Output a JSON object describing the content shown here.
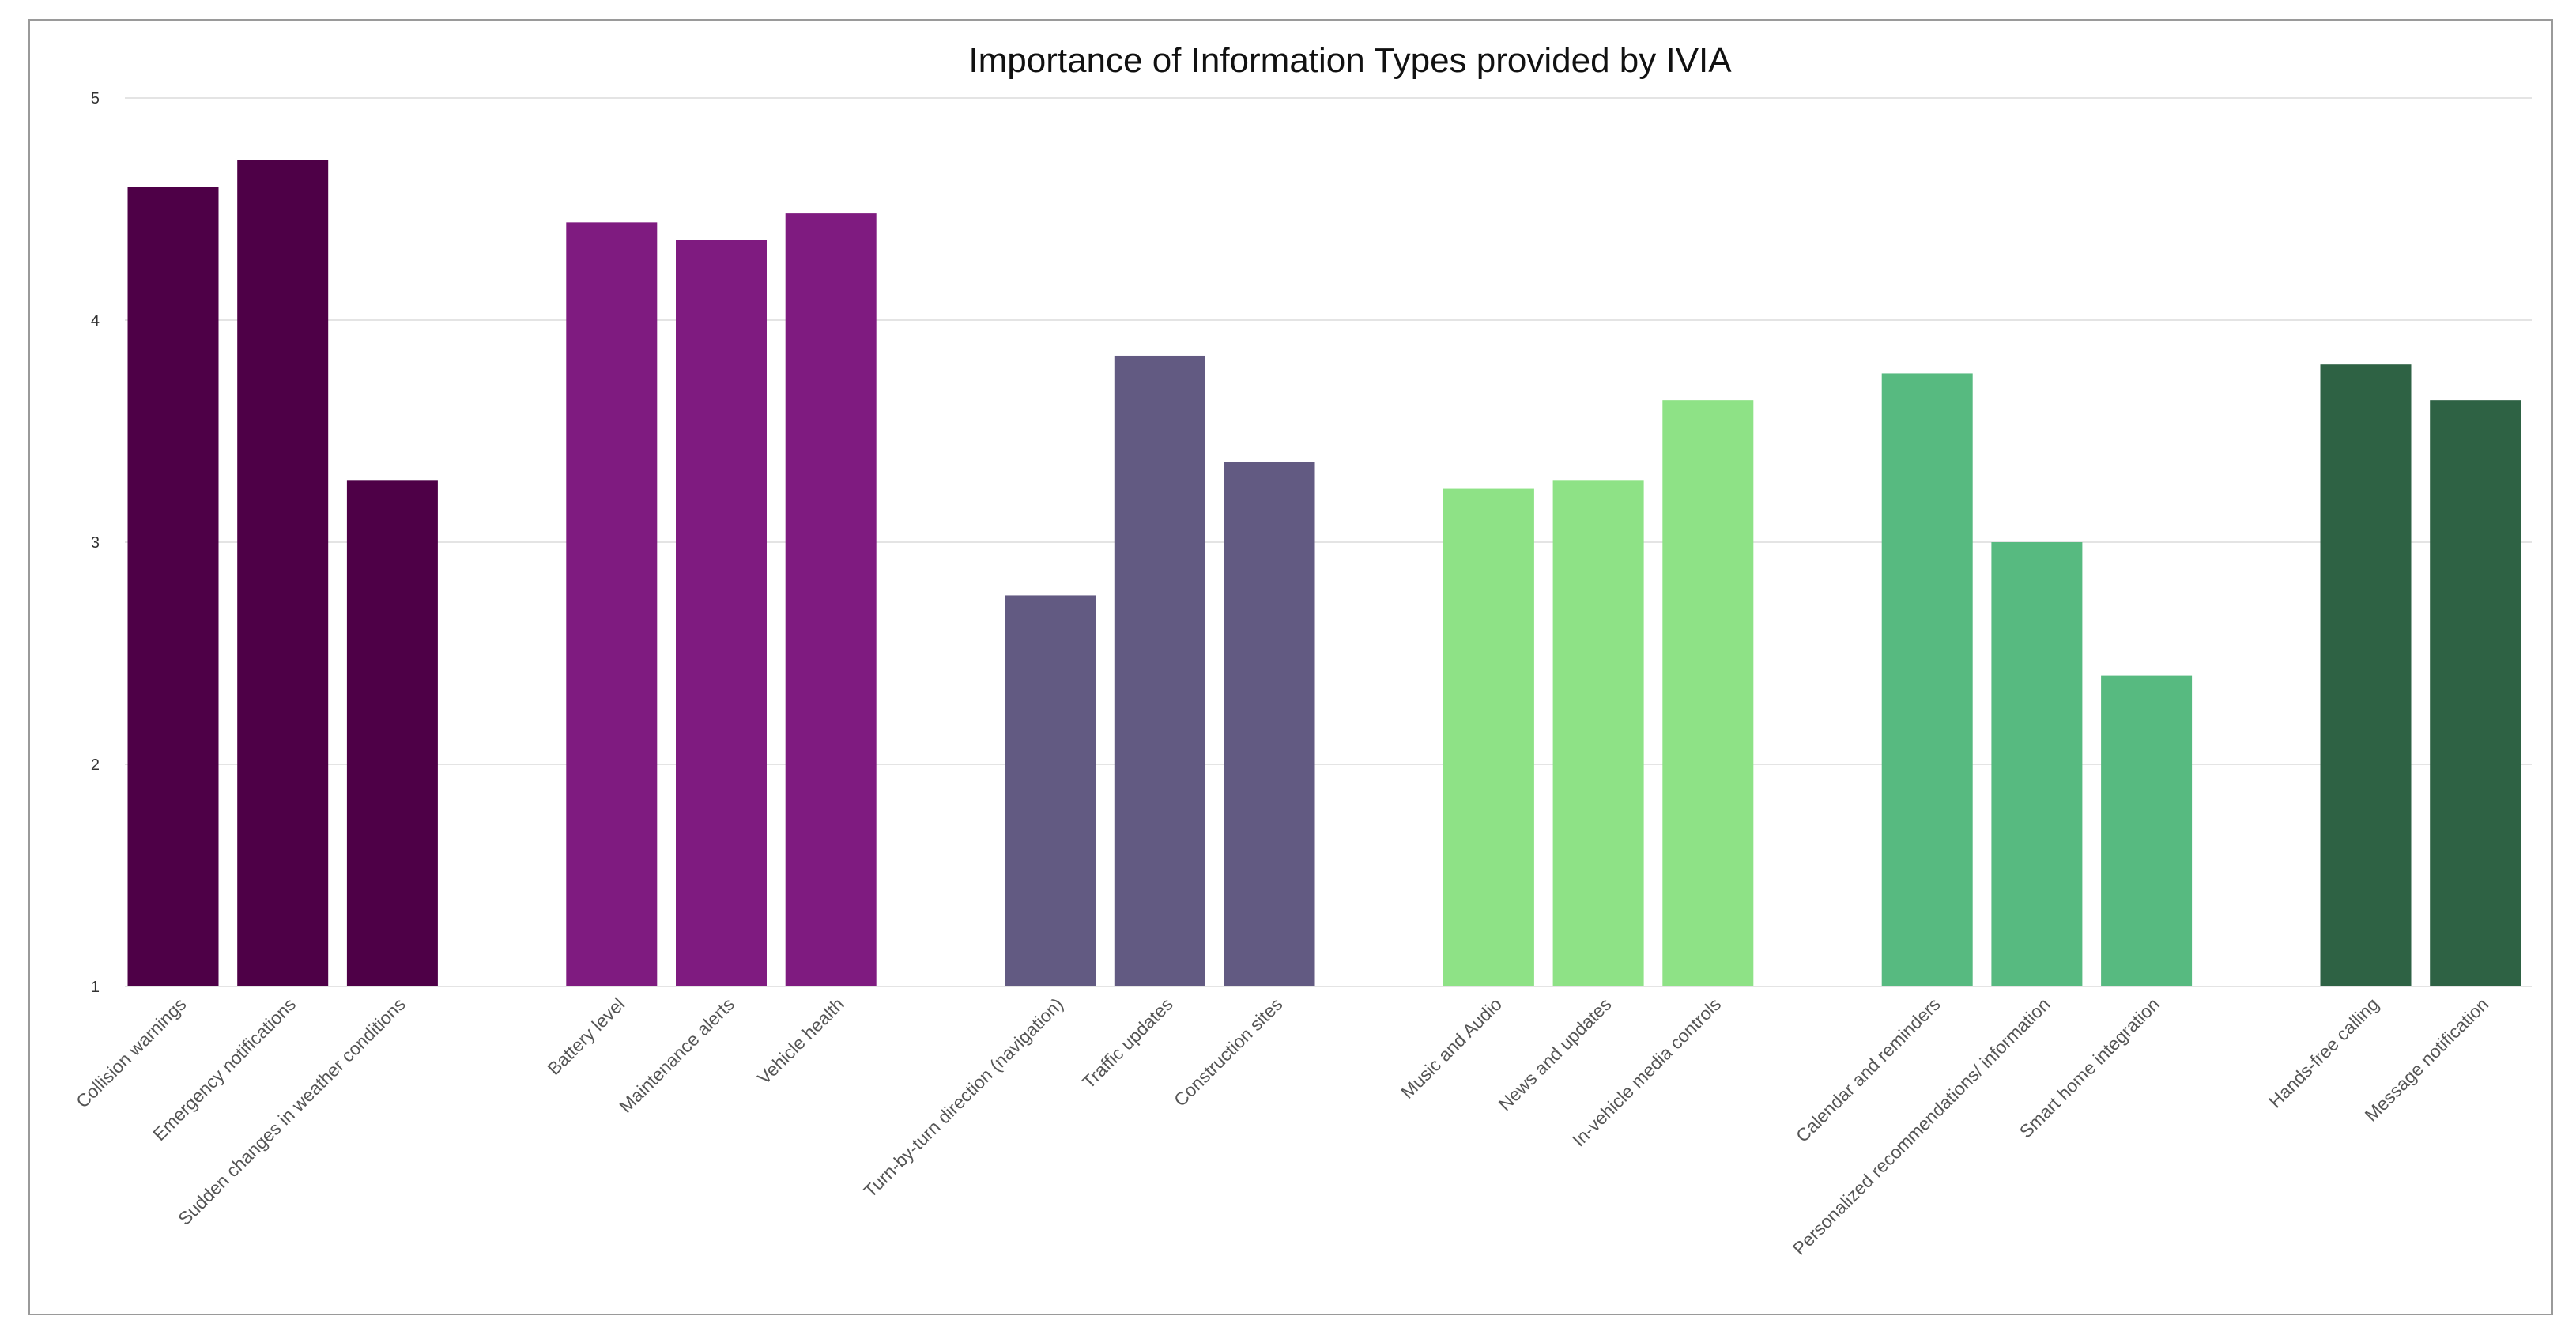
{
  "chart_data": {
    "type": "bar",
    "title": "Importance of Information Types provided by IVIA",
    "xlabel": "",
    "ylabel": "",
    "ylim": [
      1,
      5
    ],
    "yticks": [
      1,
      2,
      3,
      4,
      5
    ],
    "grid": true,
    "legend": "none",
    "groups": [
      {
        "color": "#4e0047",
        "items": [
          {
            "label": "Collision warnings",
            "value": 4.6
          },
          {
            "label": "Emergency notifications",
            "value": 4.72
          },
          {
            "label": "Sudden changes in weather conditions",
            "value": 3.28
          }
        ]
      },
      {
        "color": "#7f1b80",
        "items": [
          {
            "label": "Battery level",
            "value": 4.44
          },
          {
            "label": "Maintenance alerts",
            "value": 4.36
          },
          {
            "label": "Vehicle health",
            "value": 4.48
          }
        ]
      },
      {
        "color": "#625a82",
        "items": [
          {
            "label": "Turn-by-turn direction (navigation)",
            "value": 2.76
          },
          {
            "label": "Traffic updates",
            "value": 3.84
          },
          {
            "label": "Construction sites",
            "value": 3.36
          }
        ]
      },
      {
        "color": "#8ee286",
        "items": [
          {
            "label": "Music and Audio",
            "value": 3.24
          },
          {
            "label": "News and updates",
            "value": 3.28
          },
          {
            "label": "In-vehicle media controls",
            "value": 3.64
          }
        ]
      },
      {
        "color": "#57ba80",
        "items": [
          {
            "label": "Calendar and reminders",
            "value": 3.76
          },
          {
            "label": "Personalized recommendations/ information",
            "value": 3.0
          },
          {
            "label": "Smart home integration",
            "value": 2.4
          }
        ]
      },
      {
        "color": "#2e6244",
        "items": [
          {
            "label": "Hands-free calling",
            "value": 3.8
          },
          {
            "label": "Message notification",
            "value": 3.64
          }
        ]
      }
    ]
  }
}
